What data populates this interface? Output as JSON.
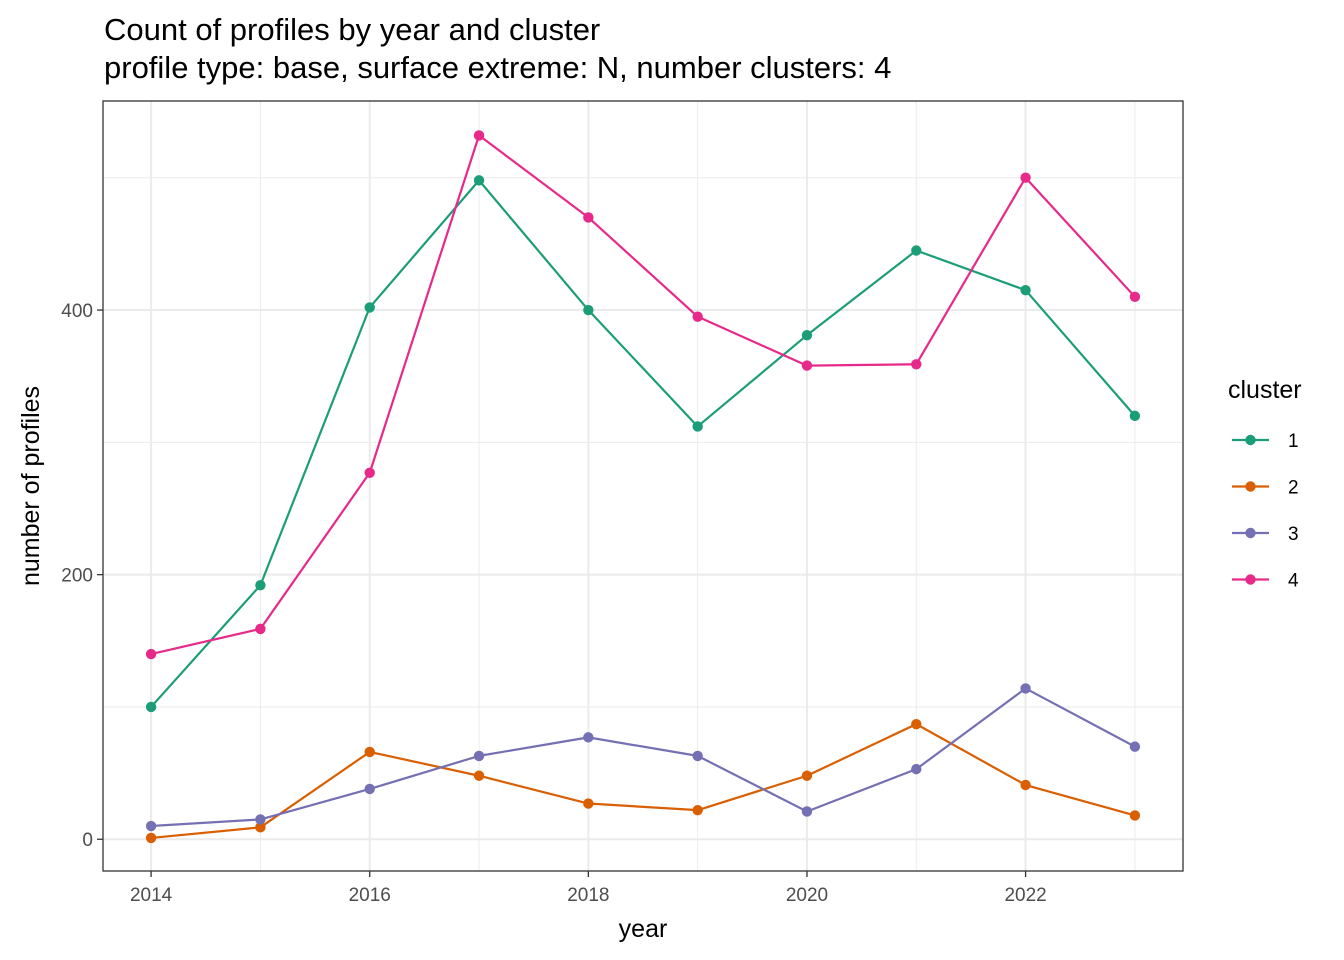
{
  "chart_data": {
    "type": "line",
    "title": "Count of profiles by year and cluster",
    "subtitle": "profile type: base, surface extreme: N, number clusters: 4",
    "xlabel": "year",
    "ylabel": "number of profiles",
    "x": [
      2014,
      2015,
      2016,
      2017,
      2018,
      2019,
      2020,
      2021,
      2022,
      2023
    ],
    "xlim": [
      2013.56,
      2023.44
    ],
    "ylim": [
      -24,
      558
    ],
    "xticks": [
      2014,
      2016,
      2018,
      2020,
      2022
    ],
    "xtick_labels": [
      "2014",
      "2016",
      "2018",
      "2020",
      "2022"
    ],
    "yticks": [
      0,
      200,
      400
    ],
    "ytick_labels": [
      "0",
      "200",
      "400"
    ],
    "yminor": [
      100,
      300,
      500
    ],
    "xminor": [
      2015,
      2017,
      2019,
      2021,
      2023
    ],
    "grid": true,
    "legend": {
      "title": "cluster",
      "position": "right"
    },
    "series": [
      {
        "name": "1",
        "color": "#1b9e77",
        "values": [
          100,
          192,
          402,
          498,
          400,
          312,
          381,
          445,
          415,
          320
        ]
      },
      {
        "name": "2",
        "color": "#d95f02",
        "values": [
          1,
          9,
          66,
          48,
          27,
          22,
          48,
          87,
          41,
          18
        ]
      },
      {
        "name": "3",
        "color": "#7570b3",
        "values": [
          10,
          15,
          38,
          63,
          77,
          63,
          21,
          53,
          114,
          70
        ]
      },
      {
        "name": "4",
        "color": "#e7298a",
        "values": [
          140,
          159,
          277,
          532,
          470,
          395,
          358,
          359,
          500,
          410
        ]
      }
    ]
  }
}
